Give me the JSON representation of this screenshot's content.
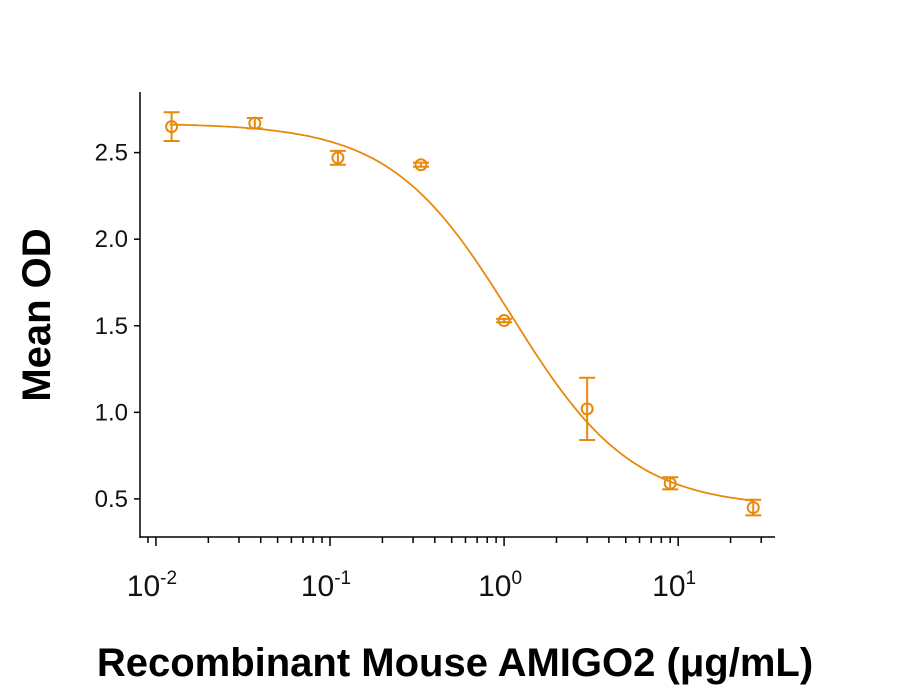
{
  "chart_data": {
    "type": "scatter",
    "xlabel": "Recombinant Mouse AMIGO2 (μg/mL)",
    "ylabel": "Mean OD",
    "x_scale": "log",
    "xlim": [
      0.0081,
      36
    ],
    "ylim": [
      0.28,
      2.85
    ],
    "x_ticks": [
      {
        "value": 0.01,
        "base": "10",
        "exp": "-2"
      },
      {
        "value": 0.1,
        "base": "10",
        "exp": "-1"
      },
      {
        "value": 1,
        "base": "10",
        "exp": "0"
      },
      {
        "value": 10,
        "base": "10",
        "exp": "1"
      }
    ],
    "y_ticks": [
      "0.5",
      "1.0",
      "1.5",
      "2.0",
      "2.5"
    ],
    "grid": false,
    "color": "#E8890C",
    "series": [
      {
        "x": [
          0.0123,
          0.037,
          0.111,
          0.333,
          1,
          3,
          9,
          27
        ],
        "y": [
          2.65,
          2.67,
          2.47,
          2.43,
          1.53,
          1.02,
          0.59,
          0.45
        ],
        "error": [
          0.083,
          0.03,
          0.04,
          0.012,
          0.01,
          0.18,
          0.035,
          0.045
        ]
      }
    ],
    "fit": {
      "type": "4PL",
      "top": 2.67,
      "bottom": 0.45,
      "ec50": 1.1,
      "hill": 1.25
    }
  }
}
